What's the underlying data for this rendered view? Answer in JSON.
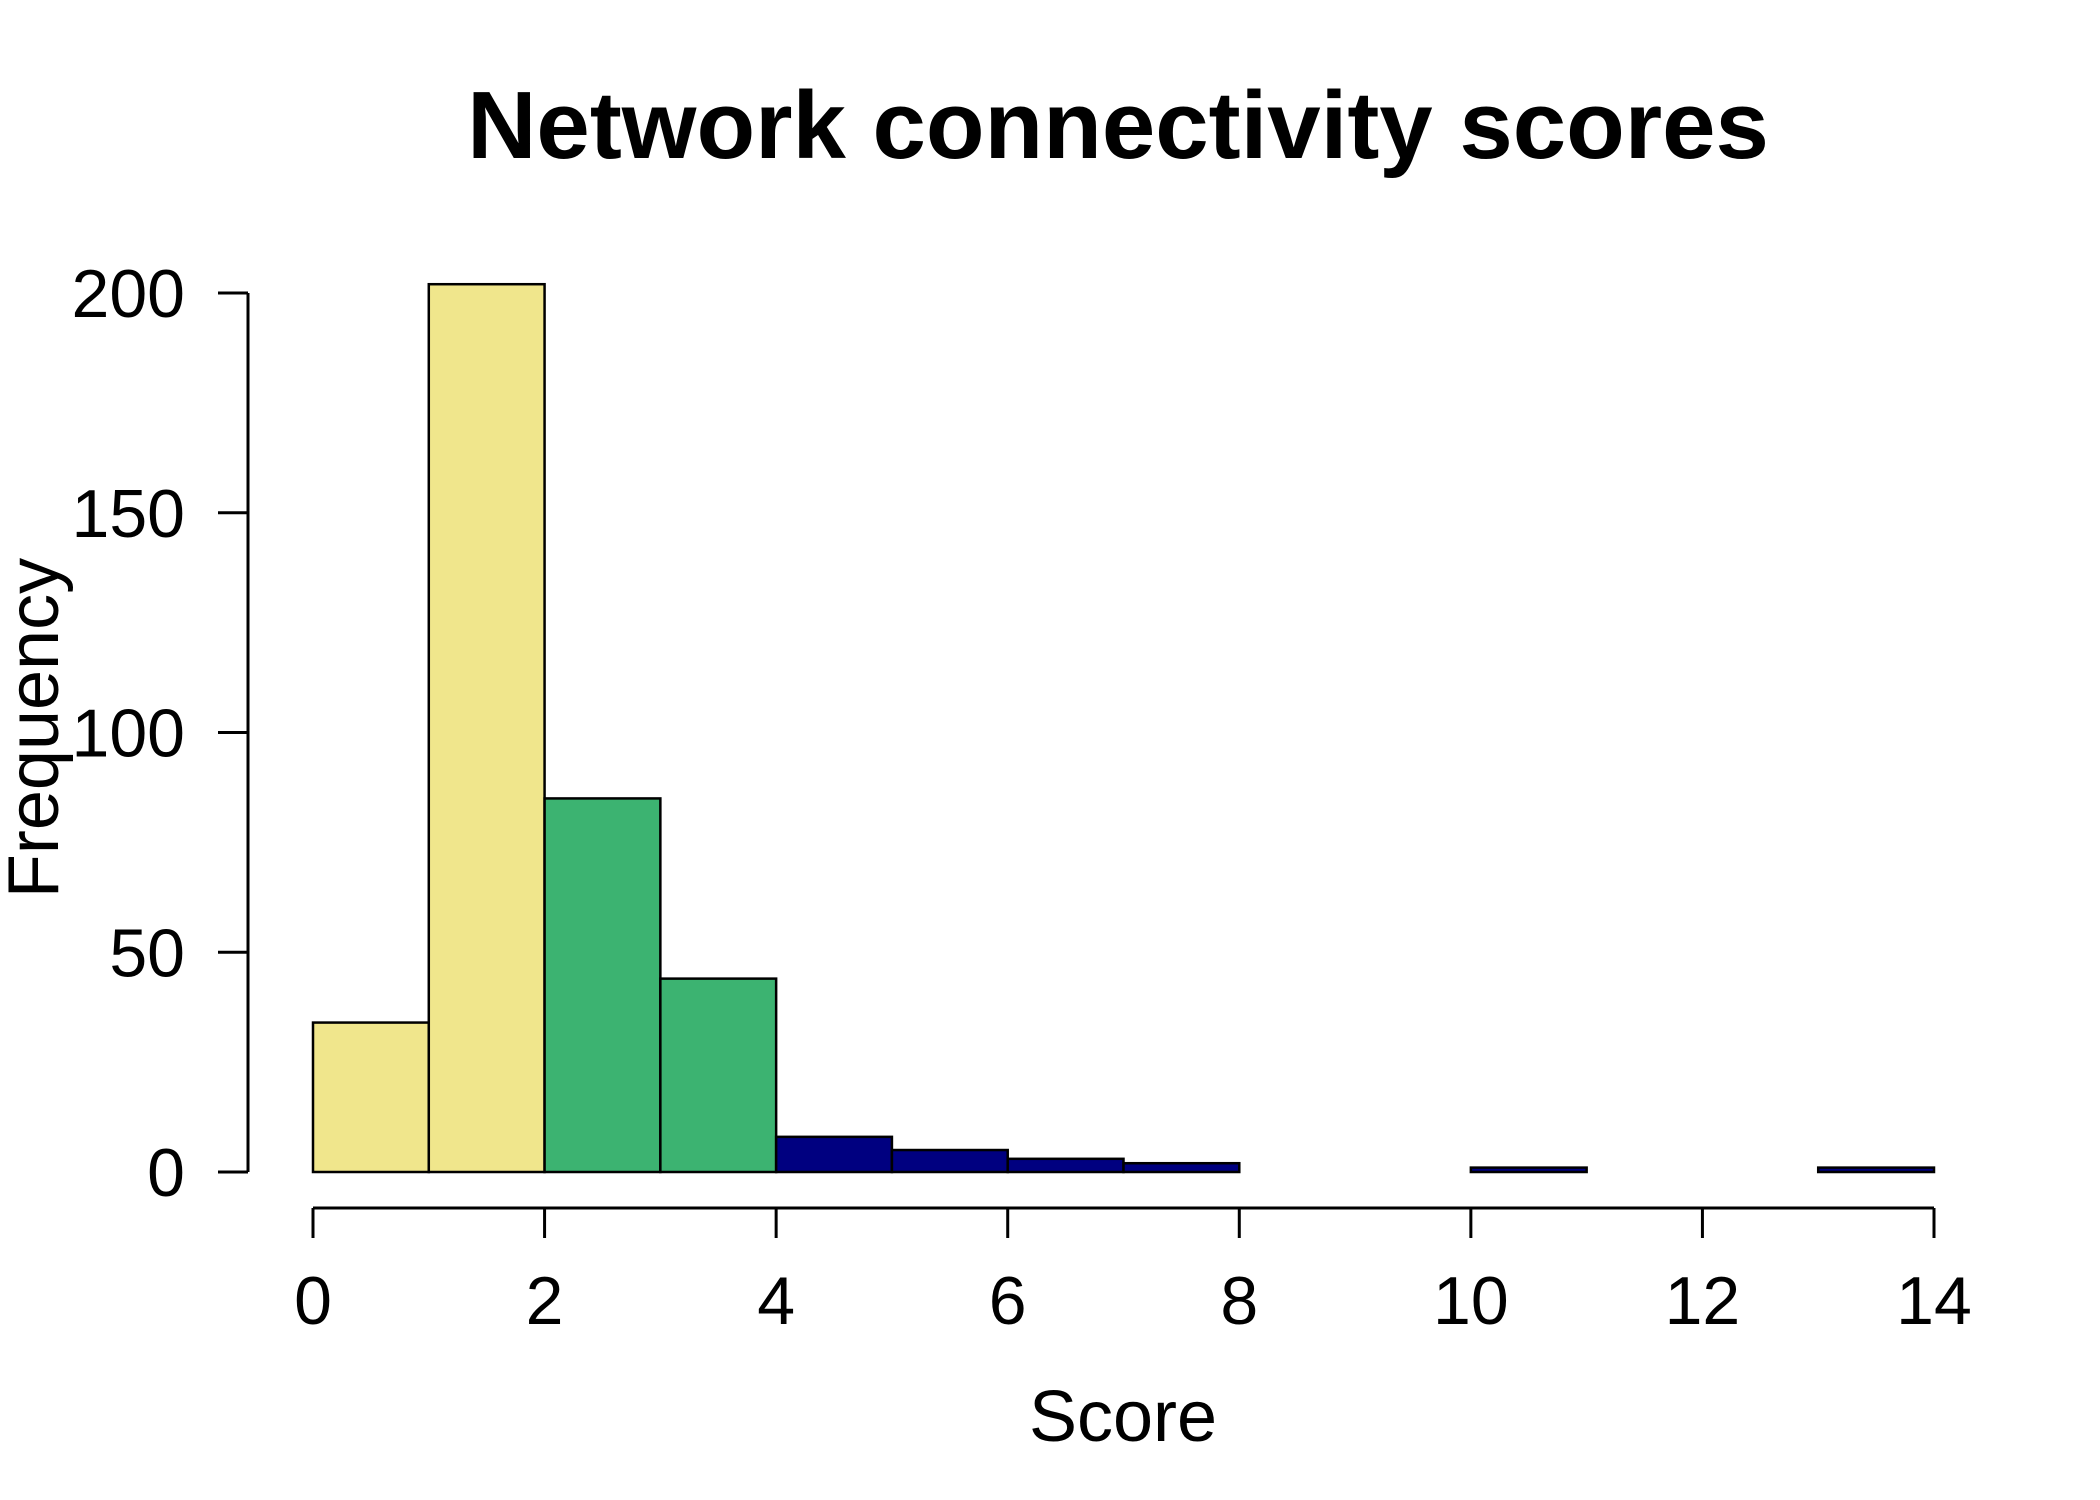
{
  "chart_data": {
    "type": "bar",
    "title": "Network connectivity scores",
    "xlabel": "Score",
    "ylabel": "Frequency",
    "xlim": [
      0,
      14
    ],
    "ylim": [
      0,
      200
    ],
    "x_ticks": [
      0,
      2,
      4,
      6,
      8,
      10,
      12,
      14
    ],
    "y_ticks": [
      0,
      50,
      100,
      150,
      200
    ],
    "grid": false,
    "legend": "none",
    "bins": [
      {
        "start": 0,
        "end": 1,
        "count": 34,
        "color": "#F0E68C"
      },
      {
        "start": 1,
        "end": 2,
        "count": 202,
        "color": "#F0E68C"
      },
      {
        "start": 2,
        "end": 3,
        "count": 85,
        "color": "#3CB371"
      },
      {
        "start": 3,
        "end": 4,
        "count": 44,
        "color": "#3CB371"
      },
      {
        "start": 4,
        "end": 5,
        "count": 8,
        "color": "#000080"
      },
      {
        "start": 5,
        "end": 6,
        "count": 5,
        "color": "#000080"
      },
      {
        "start": 6,
        "end": 7,
        "count": 3,
        "color": "#000080"
      },
      {
        "start": 7,
        "end": 8,
        "count": 2,
        "color": "#000080"
      },
      {
        "start": 8,
        "end": 9,
        "count": 0,
        "color": "#000080"
      },
      {
        "start": 9,
        "end": 10,
        "count": 0,
        "color": "#000080"
      },
      {
        "start": 10,
        "end": 11,
        "count": 1,
        "color": "#000080"
      },
      {
        "start": 11,
        "end": 12,
        "count": 0,
        "color": "#000080"
      },
      {
        "start": 12,
        "end": 13,
        "count": 0,
        "color": "#000080"
      },
      {
        "start": 13,
        "end": 14,
        "count": 1,
        "color": "#000080"
      }
    ]
  }
}
